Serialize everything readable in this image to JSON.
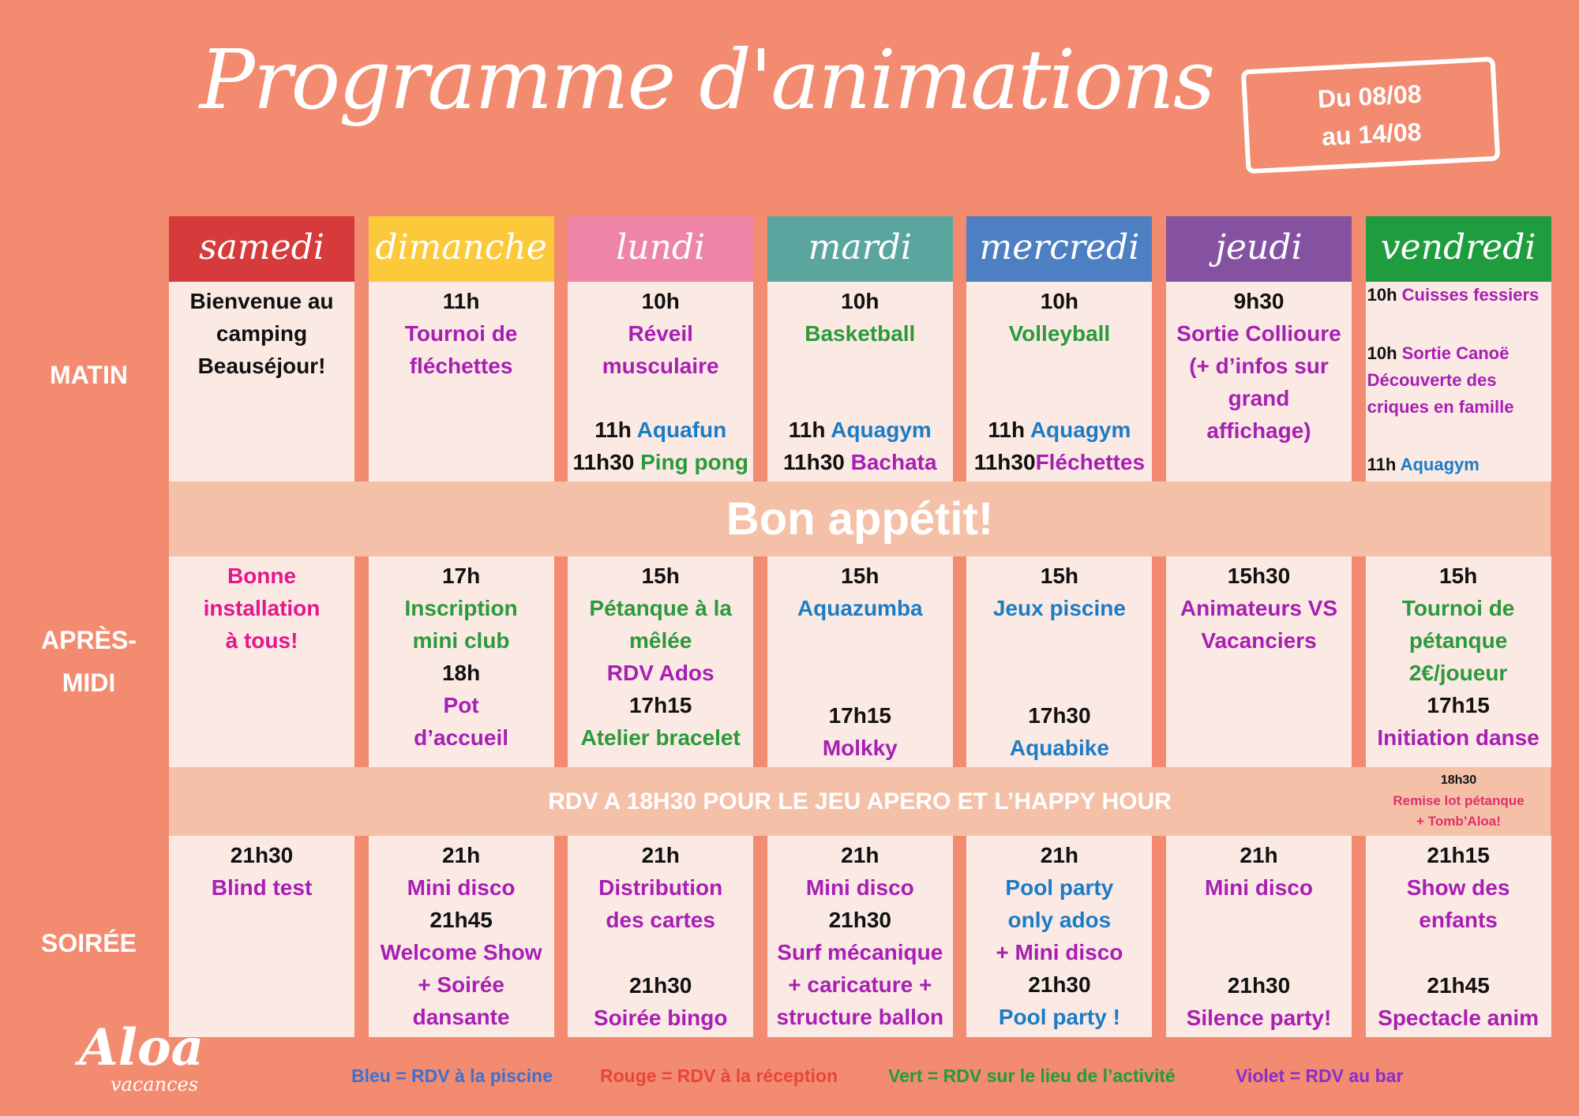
{
  "header": {
    "title": "Programme d'animations",
    "dates": [
      "Du 08/08",
      "au 14/08"
    ]
  },
  "days": [
    {
      "name": "samedi",
      "color": "#d63a3a"
    },
    {
      "name": "dimanche",
      "color": "#fcc93a"
    },
    {
      "name": "lundi",
      "color": "#ee85a8"
    },
    {
      "name": "mardi",
      "color": "#5aa59e"
    },
    {
      "name": "mercredi",
      "color": "#4d7fc3"
    },
    {
      "name": "jeudi",
      "color": "#8552a1"
    },
    {
      "name": "vendredi",
      "color": "#1f9c3e"
    }
  ],
  "rows": [
    {
      "period": "MATIN",
      "cells": [
        [
          [
            [
              {
                "text": "Bienvenue au",
                "color": "#111111"
              }
            ],
            [
              {
                "text": "camping",
                "color": "#111111"
              }
            ],
            [
              {
                "text": "Beauséjour!",
                "color": "#111111"
              }
            ]
          ]
        ],
        [
          [
            [
              {
                "text": "11h",
                "color": "#111111"
              }
            ],
            [
              {
                "text": "Tournoi de",
                "color": "#a71fb3"
              }
            ],
            [
              {
                "text": "fléchettes",
                "color": "#a71fb3"
              }
            ]
          ]
        ],
        [
          [
            [
              {
                "text": "10h",
                "color": "#111111"
              }
            ],
            [
              {
                "text": "Réveil",
                "color": "#a71fb3"
              }
            ],
            [
              {
                "text": "musculaire",
                "color": "#a71fb3"
              }
            ]
          ],
          [
            [
              {
                "text": "11h ",
                "color": "#111111"
              },
              {
                "text": "Aquafun",
                "color": "#1b7cc6"
              }
            ],
            [
              {
                "text": "11h30 ",
                "color": "#111111"
              },
              {
                "text": "Ping pong",
                "color": "#2a9a3a"
              }
            ]
          ]
        ],
        [
          [
            [
              {
                "text": "10h",
                "color": "#111111"
              }
            ],
            [
              {
                "text": "Basketball",
                "color": "#2a9a3a"
              }
            ]
          ],
          [
            [
              {
                "text": "11h ",
                "color": "#111111"
              },
              {
                "text": "Aquagym",
                "color": "#1b7cc6"
              }
            ],
            [
              {
                "text": "11h30 ",
                "color": "#111111"
              },
              {
                "text": "Bachata",
                "color": "#a71fb3"
              }
            ]
          ]
        ],
        [
          [
            [
              {
                "text": "10h",
                "color": "#111111"
              }
            ],
            [
              {
                "text": "Volleyball",
                "color": "#2a9a3a"
              }
            ]
          ],
          [
            [
              {
                "text": "11h ",
                "color": "#111111"
              },
              {
                "text": "Aquagym",
                "color": "#1b7cc6"
              }
            ],
            [
              {
                "text": "11h30",
                "color": "#111111"
              },
              {
                "text": "Fléchettes",
                "color": "#a71fb3"
              }
            ]
          ]
        ],
        [
          [
            [
              {
                "text": "9h30",
                "color": "#111111"
              }
            ],
            [
              {
                "text": "Sortie Collioure",
                "color": "#a71fb3"
              }
            ],
            [
              {
                "text": "(+ d’infos sur",
                "color": "#a71fb3"
              }
            ],
            [
              {
                "text": "grand",
                "color": "#a71fb3"
              }
            ],
            [
              {
                "text": "affichage)",
                "color": "#a71fb3"
              }
            ]
          ]
        ],
        [
          [
            [
              {
                "text": "10h ",
                "color": "#111111"
              },
              {
                "text": "Cuisses fessiers",
                "color": "#a71fb3"
              }
            ]
          ],
          [
            [
              {
                "text": "10h ",
                "color": "#111111"
              },
              {
                "text": "Sortie Canoë",
                "color": "#a71fb3"
              }
            ],
            [
              {
                "text": "Découverte des",
                "color": "#a71fb3"
              }
            ],
            [
              {
                "text": "criques en famille",
                "color": "#a71fb3"
              }
            ]
          ],
          [
            [
              {
                "text": "11h ",
                "color": "#111111"
              },
              {
                "text": "Aquagym",
                "color": "#1b7cc6"
              }
            ]
          ]
        ]
      ]
    },
    {
      "period": "APRÈS-MIDI",
      "cells": [
        [
          [
            [
              {
                "text": "Bonne",
                "color": "#e4178c"
              }
            ],
            [
              {
                "text": "installation",
                "color": "#e4178c"
              }
            ],
            [
              {
                "text": "à tous!",
                "color": "#e4178c"
              }
            ]
          ]
        ],
        [
          [
            [
              {
                "text": "17h",
                "color": "#111111"
              }
            ],
            [
              {
                "text": "Inscription",
                "color": "#2a9a3a"
              }
            ],
            [
              {
                "text": "mini club",
                "color": "#2a9a3a"
              }
            ],
            [
              {
                "text": "18h",
                "color": "#111111"
              }
            ],
            [
              {
                "text": "Pot",
                "color": "#a71fb3"
              }
            ],
            [
              {
                "text": "d’accueil",
                "color": "#a71fb3"
              }
            ]
          ]
        ],
        [
          [
            [
              {
                "text": "15h",
                "color": "#111111"
              }
            ],
            [
              {
                "text": "Pétanque à la",
                "color": "#2a9a3a"
              }
            ],
            [
              {
                "text": "mêlée",
                "color": "#2a9a3a"
              }
            ],
            [
              {
                "text": "RDV Ados",
                "color": "#a71fb3"
              }
            ],
            [
              {
                "text": "17h15",
                "color": "#111111"
              }
            ],
            [
              {
                "text": "Atelier bracelet",
                "color": "#2a9a3a"
              }
            ]
          ]
        ],
        [
          [
            [
              {
                "text": "15h",
                "color": "#111111"
              }
            ],
            [
              {
                "text": "Aquazumba",
                "color": "#1b7cc6"
              }
            ]
          ],
          [
            [
              {
                "text": "17h15",
                "color": "#111111"
              }
            ],
            [
              {
                "text": "Molkky",
                "color": "#a71fb3"
              }
            ]
          ]
        ],
        [
          [
            [
              {
                "text": "15h",
                "color": "#111111"
              }
            ],
            [
              {
                "text": "Jeux piscine",
                "color": "#1b7cc6"
              }
            ]
          ],
          [
            [
              {
                "text": "17h30",
                "color": "#111111"
              }
            ],
            [
              {
                "text": "Aquabike",
                "color": "#1b7cc6"
              }
            ]
          ]
        ],
        [
          [
            [
              {
                "text": "15h30",
                "color": "#111111"
              }
            ],
            [
              {
                "text": "Animateurs VS",
                "color": "#a71fb3"
              }
            ],
            [
              {
                "text": "Vacanciers",
                "color": "#a71fb3"
              }
            ]
          ]
        ],
        [
          [
            [
              {
                "text": "15h",
                "color": "#111111"
              }
            ],
            [
              {
                "text": "Tournoi de",
                "color": "#2a9a3a"
              }
            ],
            [
              {
                "text": "pétanque",
                "color": "#2a9a3a"
              }
            ],
            [
              {
                "text": "2€/joueur",
                "color": "#2a9a3a"
              }
            ],
            [
              {
                "text": "17h15",
                "color": "#111111"
              }
            ],
            [
              {
                "text": "Initiation danse",
                "color": "#a71fb3"
              }
            ]
          ]
        ]
      ]
    },
    {
      "period": "SOIRÉE",
      "cells": [
        [
          [
            [
              {
                "text": "21h30",
                "color": "#111111"
              }
            ],
            [
              {
                "text": "Blind test",
                "color": "#a71fb3"
              }
            ]
          ]
        ],
        [
          [
            [
              {
                "text": "21h",
                "color": "#111111"
              }
            ],
            [
              {
                "text": "Mini disco",
                "color": "#a71fb3"
              }
            ],
            [
              {
                "text": "21h45",
                "color": "#111111"
              }
            ],
            [
              {
                "text": "Welcome Show",
                "color": "#a71fb3"
              }
            ],
            [
              {
                "text": "+ Soirée",
                "color": "#a71fb3"
              }
            ],
            [
              {
                "text": "dansante",
                "color": "#a71fb3"
              }
            ]
          ]
        ],
        [
          [
            [
              {
                "text": "21h",
                "color": "#111111"
              }
            ],
            [
              {
                "text": "Distribution",
                "color": "#a71fb3"
              }
            ],
            [
              {
                "text": "des cartes",
                "color": "#a71fb3"
              }
            ]
          ],
          [
            [
              {
                "text": "21h30",
                "color": "#111111"
              }
            ],
            [
              {
                "text": "Soirée bingo",
                "color": "#a71fb3"
              }
            ]
          ]
        ],
        [
          [
            [
              {
                "text": "21h",
                "color": "#111111"
              }
            ],
            [
              {
                "text": "Mini disco",
                "color": "#a71fb3"
              }
            ],
            [
              {
                "text": "21h30",
                "color": "#111111"
              }
            ],
            [
              {
                "text": "Surf mécanique",
                "color": "#a71fb3"
              }
            ],
            [
              {
                "text": "+ caricature +",
                "color": "#a71fb3"
              }
            ],
            [
              {
                "text": "structure ballon",
                "color": "#a71fb3"
              }
            ]
          ]
        ],
        [
          [
            [
              {
                "text": "21h",
                "color": "#111111"
              }
            ],
            [
              {
                "text": "Pool party",
                "color": "#1b7cc6"
              }
            ],
            [
              {
                "text": "only ados",
                "color": "#1b7cc6"
              }
            ],
            [
              {
                "text": "+ Mini disco",
                "color": "#a71fb3"
              }
            ],
            [
              {
                "text": "21h30",
                "color": "#111111"
              }
            ],
            [
              {
                "text": "Pool party !",
                "color": "#1b7cc6"
              }
            ]
          ]
        ],
        [
          [
            [
              {
                "text": "21h",
                "color": "#111111"
              }
            ],
            [
              {
                "text": "Mini disco",
                "color": "#a71fb3"
              }
            ]
          ],
          [
            [
              {
                "text": "21h30",
                "color": "#111111"
              }
            ],
            [
              {
                "text": "Silence party!",
                "color": "#a71fb3"
              }
            ]
          ]
        ],
        [
          [
            [
              {
                "text": "21h15",
                "color": "#111111"
              }
            ],
            [
              {
                "text": "Show des",
                "color": "#a71fb3"
              }
            ],
            [
              {
                "text": "enfants",
                "color": "#a71fb3"
              }
            ]
          ],
          [
            [
              {
                "text": "21h45",
                "color": "#111111"
              }
            ],
            [
              {
                "text": "Spectacle anim",
                "color": "#a71fb3"
              }
            ]
          ]
        ]
      ]
    }
  ],
  "banners": {
    "lunch": "Bon appétit!",
    "evening": "RDV A 18H30 POUR LE JEU APERO ET L’HAPPY HOUR",
    "note": [
      {
        "text": "18h30",
        "color": "#111111"
      },
      {
        "text": "Remise lot pétanque",
        "color": "#e0306a"
      },
      {
        "text": "+ Tomb’Aloa!",
        "color": "#e0306a"
      }
    ]
  },
  "legend": [
    {
      "text": "Bleu = RDV à la piscine",
      "color": "#3f6fd1"
    },
    {
      "text": "Rouge = RDV à la réception",
      "color": "#e8453c"
    },
    {
      "text": "Vert = RDV sur le lieu de l’activité",
      "color": "#1f9c3e"
    },
    {
      "text": "Violet = RDV au bar",
      "color": "#8a2fc9"
    }
  ],
  "logo": {
    "name": "Aloa",
    "tagline": "vacances"
  }
}
